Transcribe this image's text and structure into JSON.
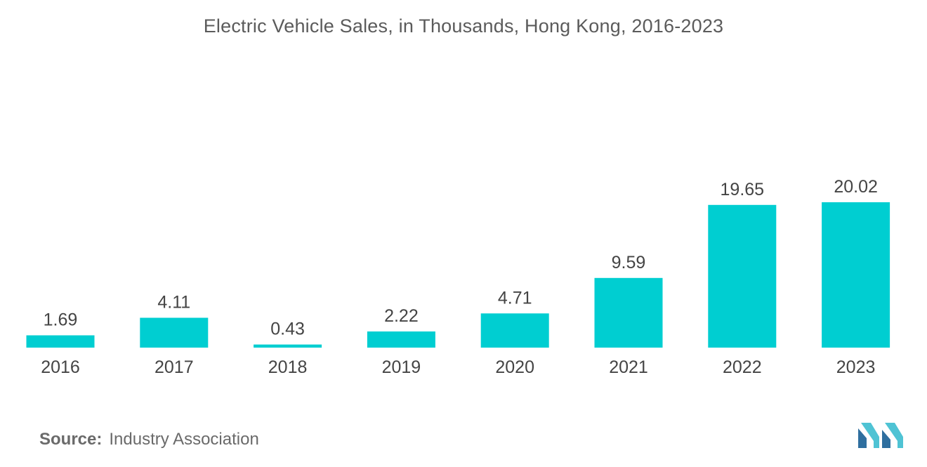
{
  "chart_data": {
    "type": "bar",
    "title": "Electric Vehicle Sales, in Thousands, Hong Kong, 2016-2023",
    "categories": [
      "2016",
      "2017",
      "2018",
      "2019",
      "2020",
      "2021",
      "2022",
      "2023"
    ],
    "values": [
      1.69,
      4.11,
      0.43,
      2.22,
      4.71,
      9.59,
      19.65,
      20.02
    ],
    "value_labels": [
      "1.69",
      "4.11",
      "0.43",
      "2.22",
      "4.71",
      "9.59",
      "19.65",
      "20.02"
    ],
    "xlabel": "",
    "ylabel": "",
    "ylim": [
      0,
      20.02
    ],
    "grid": false,
    "legend": "none"
  },
  "colors": {
    "bar": "#00ced1",
    "text": "#444444",
    "title": "#5b5b5b",
    "logo_dark": "#2f6f9f",
    "logo_light": "#4fc3d4"
  },
  "source": {
    "label": "Source:",
    "text": "Industry Association"
  },
  "logo": {
    "icon": "mordor-intelligence-logo-icon"
  }
}
